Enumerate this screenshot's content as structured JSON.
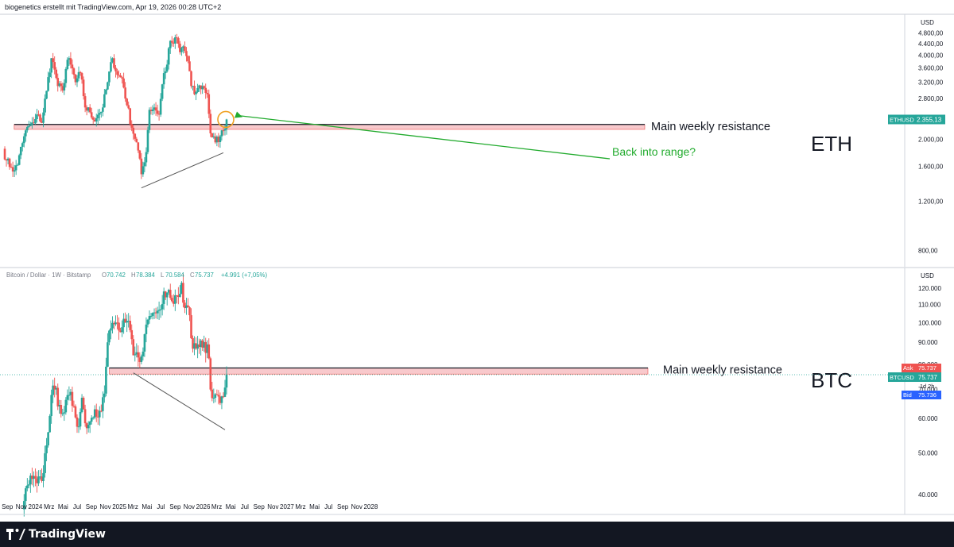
{
  "header": {
    "credit": "biogenetics erstellt mit TradingView.com, Apr 19, 2026 00:28 UTC+2"
  },
  "footer": {
    "brand": "TradingView"
  },
  "colors": {
    "up": "#26a69a",
    "down": "#ef5350",
    "zone": "#f8c9cc",
    "annotation": "#22ab2e",
    "ticker_up": "#26a69a",
    "bid": "#2962ff",
    "ask": "#ef5350"
  },
  "x_axis": {
    "labels": [
      "Sep",
      "Nov",
      "2024",
      "Mrz",
      "Mai",
      "Jul",
      "Sep",
      "Nov",
      "2025",
      "Mrz",
      "Mai",
      "Jul",
      "Sep",
      "Nov",
      "2026",
      "Mrz",
      "Mai",
      "Jul",
      "Sep",
      "Nov",
      "2027",
      "Mrz",
      "Mai",
      "Jul",
      "Sep",
      "Nov",
      "2028"
    ]
  },
  "chart_data": [
    {
      "type": "candlestick",
      "asset_label": "ETH",
      "currency": "USD",
      "ticker": "ETHUSD",
      "last_price": "2.355,13",
      "y_scale": "log",
      "ylim": [
        700,
        5600
      ],
      "y_ticks": [
        800,
        1200,
        1600,
        2000,
        2400,
        2800,
        3200,
        3600,
        4000,
        4400,
        4800
      ],
      "y_tick_labels": [
        "800,00",
        "1.200,00",
        "1.600,00",
        "2.000,00",
        "2.400,00",
        "2.800,00",
        "3.200,00",
        "3.600,00",
        "4.000,00",
        "4.400,00",
        "4.800,00"
      ],
      "resistance_zone": {
        "low": 2170,
        "high": 2260,
        "label": "Main weekly resistance",
        "start": "2023-10"
      },
      "support_trendline": {
        "from": [
          "2025-04-07",
          1340
        ],
        "to": [
          "2026-03-30",
          1790
        ]
      },
      "annotation": {
        "text": "Back into range?",
        "at": "2026-04-13"
      },
      "weekly_closes": [
        [
          "2023-08-14",
          1850
        ],
        [
          "2023-08-28",
          1680
        ],
        [
          "2023-09-18",
          1590
        ],
        [
          "2023-10-02",
          1550
        ],
        [
          "2023-10-16",
          1620
        ],
        [
          "2023-10-30",
          1880
        ],
        [
          "2023-11-13",
          2050
        ],
        [
          "2023-12-04",
          2230
        ],
        [
          "2023-12-25",
          2280
        ],
        [
          "2024-01-15",
          2450
        ],
        [
          "2024-01-29",
          2290
        ],
        [
          "2024-02-19",
          2980
        ],
        [
          "2024-03-11",
          3900
        ],
        [
          "2024-03-25",
          3550
        ],
        [
          "2024-04-08",
          3100
        ],
        [
          "2024-04-29",
          2990
        ],
        [
          "2024-05-20",
          3850
        ],
        [
          "2024-06-03",
          3700
        ],
        [
          "2024-06-24",
          3200
        ],
        [
          "2024-07-15",
          3450
        ],
        [
          "2024-08-05",
          2600
        ],
        [
          "2024-08-26",
          2500
        ],
        [
          "2024-09-09",
          2350
        ],
        [
          "2024-09-30",
          2450
        ],
        [
          "2024-10-21",
          2600
        ],
        [
          "2024-11-11",
          3200
        ],
        [
          "2024-12-02",
          3900
        ],
        [
          "2024-12-23",
          3400
        ],
        [
          "2025-01-13",
          3300
        ],
        [
          "2025-02-03",
          2650
        ],
        [
          "2025-02-24",
          2200
        ],
        [
          "2025-03-17",
          1950
        ],
        [
          "2025-04-07",
          1500
        ],
        [
          "2025-04-28",
          1800
        ],
        [
          "2025-05-12",
          2550
        ],
        [
          "2025-06-02",
          2600
        ],
        [
          "2025-06-23",
          2450
        ],
        [
          "2025-07-14",
          3450
        ],
        [
          "2025-07-28",
          3700
        ],
        [
          "2025-08-11",
          4500
        ],
        [
          "2025-08-25",
          4400
        ],
        [
          "2025-09-08",
          4600
        ],
        [
          "2025-09-22",
          4100
        ],
        [
          "2025-10-06",
          4300
        ],
        [
          "2025-10-27",
          3800
        ],
        [
          "2025-11-10",
          3100
        ],
        [
          "2025-11-24",
          2900
        ],
        [
          "2025-12-08",
          3050
        ],
        [
          "2025-12-29",
          3100
        ],
        [
          "2026-01-19",
          2900
        ],
        [
          "2026-02-02",
          2100
        ],
        [
          "2026-02-23",
          1950
        ],
        [
          "2026-03-16",
          2050
        ],
        [
          "2026-03-30",
          2150
        ],
        [
          "2026-04-13",
          2355
        ]
      ]
    },
    {
      "type": "candlestick",
      "title": "Bitcoin / Dollar · 1W · Bitstamp",
      "asset_label": "BTC",
      "currency": "USD",
      "ohlc": {
        "O": "70.742",
        "H": "78.384",
        "L": "70.584",
        "C": "75.737",
        "change": "+4.991 (+7,05%)"
      },
      "ticker": "BTCUSD",
      "last_price": "75.737",
      "countdown": "1d 2h",
      "ask": {
        "label": "Ask",
        "value": "75.737"
      },
      "bid": {
        "label": "Bid",
        "value": "75.736"
      },
      "y_scale": "log",
      "ylim": [
        36000,
        134000
      ],
      "y_ticks": [
        40000,
        50000,
        60000,
        70000,
        80000,
        90000,
        100000,
        110000,
        120000
      ],
      "y_tick_labels": [
        "40.000",
        "50.000",
        "60.000",
        "70.000",
        "80.000",
        "90.000",
        "100.000",
        "110.000",
        "120.000"
      ],
      "resistance_zone": {
        "low": 76000,
        "high": 78500,
        "label": "Main weekly resistance",
        "start": "2024-11-18"
      },
      "support_trendline": {
        "from": [
          "2025-03-03",
          76500
        ],
        "to": [
          "2026-04-06",
          56500
        ]
      },
      "weekly_closes": [
        [
          "2023-11-06",
          37000
        ],
        [
          "2023-11-27",
          42000
        ],
        [
          "2023-12-18",
          43500
        ],
        [
          "2024-01-08",
          42500
        ],
        [
          "2024-01-29",
          43000
        ],
        [
          "2024-02-19",
          52000
        ],
        [
          "2024-03-11",
          68000
        ],
        [
          "2024-03-25",
          70000
        ],
        [
          "2024-04-15",
          64500
        ],
        [
          "2024-05-06",
          62000
        ],
        [
          "2024-05-27",
          68000
        ],
        [
          "2024-06-17",
          64000
        ],
        [
          "2024-07-08",
          57500
        ],
        [
          "2024-07-22",
          67000
        ],
        [
          "2024-08-05",
          58500
        ],
        [
          "2024-08-26",
          59000
        ],
        [
          "2024-09-16",
          63000
        ],
        [
          "2024-10-07",
          62500
        ],
        [
          "2024-10-28",
          68500
        ],
        [
          "2024-11-11",
          90000
        ],
        [
          "2024-11-25",
          97000
        ],
        [
          "2024-12-16",
          100000
        ],
        [
          "2025-01-06",
          95000
        ],
        [
          "2025-01-27",
          100000
        ],
        [
          "2025-02-17",
          96000
        ],
        [
          "2025-03-03",
          84000
        ],
        [
          "2025-03-24",
          83000
        ],
        [
          "2025-04-07",
          83500
        ],
        [
          "2025-04-21",
          94000
        ],
        [
          "2025-05-12",
          103500
        ],
        [
          "2025-06-02",
          105500
        ],
        [
          "2025-06-23",
          107000
        ],
        [
          "2025-07-14",
          118000
        ],
        [
          "2025-08-04",
          119000
        ],
        [
          "2025-08-18",
          112000
        ],
        [
          "2025-09-08",
          115500
        ],
        [
          "2025-09-29",
          123500
        ],
        [
          "2025-10-13",
          108000
        ],
        [
          "2025-11-03",
          104000
        ],
        [
          "2025-11-17",
          87000
        ],
        [
          "2025-12-08",
          89000
        ],
        [
          "2025-12-29",
          87500
        ],
        [
          "2026-01-19",
          89000
        ],
        [
          "2026-02-02",
          70000
        ],
        [
          "2026-02-16",
          67000
        ],
        [
          "2026-03-02",
          68000
        ],
        [
          "2026-03-23",
          67500
        ],
        [
          "2026-04-06",
          70742
        ],
        [
          "2026-04-13",
          75737
        ]
      ]
    }
  ]
}
